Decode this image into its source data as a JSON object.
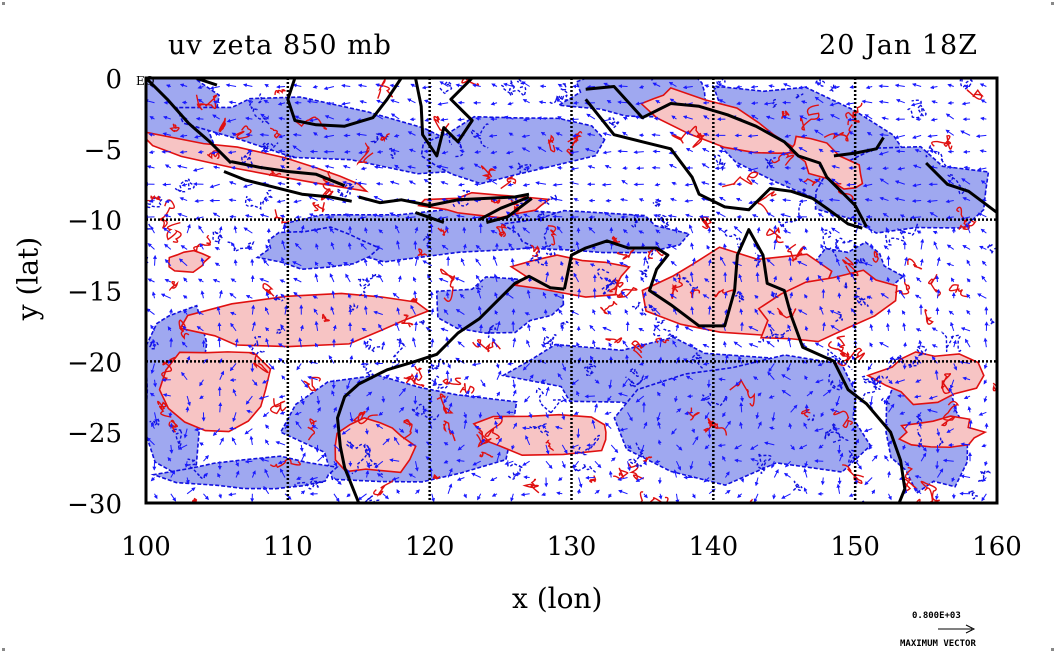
{
  "title_left": "uv zeta 850 mb",
  "title_right": "20 Jan 18Z",
  "xlabel": "x (lon)",
  "ylabel": "y (lat)",
  "eq_label": "EQ",
  "legend": {
    "value": "0.800E+03",
    "label": "MAXIMUM VECTOR"
  },
  "colors": {
    "positive_fill": "#f7c4c4",
    "positive_contour": "#e01010",
    "negative_fill": "#9fa8f0",
    "negative_contour": "#1010e0",
    "vectors": "#1a1aff",
    "coast": "#000000",
    "grid": "#000000"
  },
  "chart_data": {
    "type": "map",
    "projection": "cylindrical",
    "xlim": [
      100,
      160
    ],
    "ylim": [
      -30,
      0
    ],
    "x_ticks": [
      100,
      110,
      120,
      130,
      140,
      150,
      160
    ],
    "y_ticks": [
      0,
      -5,
      -10,
      -15,
      -20,
      -25,
      -30
    ],
    "grid": true,
    "grid_lines_lon": [
      110,
      120,
      130,
      140,
      150
    ],
    "grid_lines_lat": [
      -10,
      -20
    ],
    "fields": [
      "uv wind vectors",
      "relative vorticity zeta"
    ],
    "level": "850 mb"
  }
}
